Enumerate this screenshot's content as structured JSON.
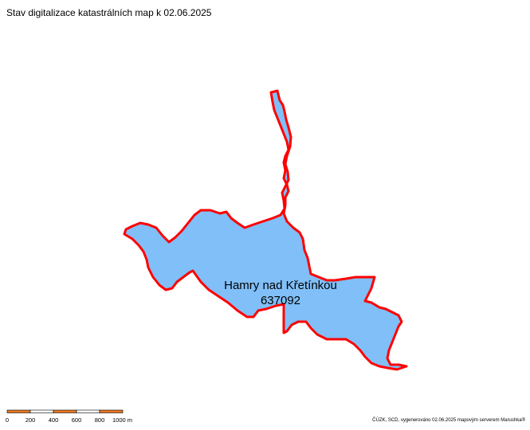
{
  "map": {
    "title": "Stav digitalizace katastrálních map k 02.06.2025",
    "parcel": {
      "name": "Hamry nad Křetínkou",
      "code": "637092",
      "fill_color": "#80bff8",
      "border_color": "#ff0000"
    },
    "scale_bar": {
      "ticks": [
        "0",
        "200",
        "400",
        "600",
        "800",
        "1000 m"
      ],
      "segment_colors": [
        "#e87722",
        "#ffffff",
        "#e87722",
        "#ffffff",
        "#e87722"
      ]
    },
    "credits": "ČÚZK, SCD, vygenerováno 02.06.2025 mapovým serverem Marushka®"
  }
}
